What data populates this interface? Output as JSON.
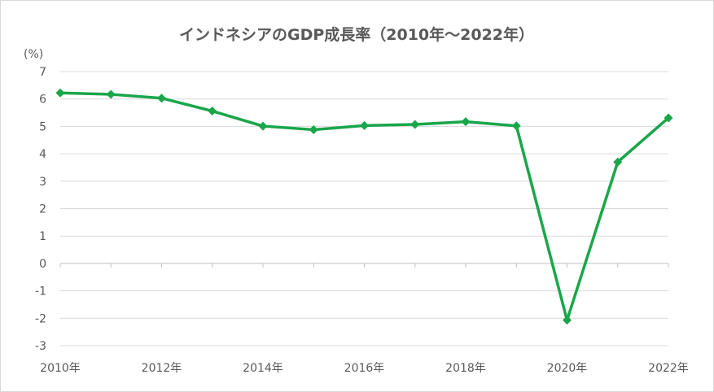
{
  "chart_data": {
    "type": "line",
    "title": "インドネシアのGDP成長率（2010年～2022年）",
    "ylabel": "(%)",
    "xlabel": "",
    "ylim": [
      -3,
      7
    ],
    "yticks": [
      "7",
      "6",
      "5",
      "4",
      "3",
      "2",
      "1",
      "0",
      "-1",
      "-2",
      "-3"
    ],
    "grid": true,
    "legend": "none",
    "x": [
      2010,
      2011,
      2012,
      2013,
      2014,
      2015,
      2016,
      2017,
      2018,
      2019,
      2020,
      2021,
      2022
    ],
    "x_tick_labels": [
      "2010年",
      "2012年",
      "2014年",
      "2016年",
      "2018年",
      "2020年",
      "2022年"
    ],
    "series": [
      {
        "color": "#1aa64a",
        "values": [
          6.22,
          6.17,
          6.03,
          5.56,
          5.01,
          4.88,
          5.03,
          5.07,
          5.17,
          5.02,
          -2.07,
          3.7,
          5.31
        ]
      }
    ]
  }
}
